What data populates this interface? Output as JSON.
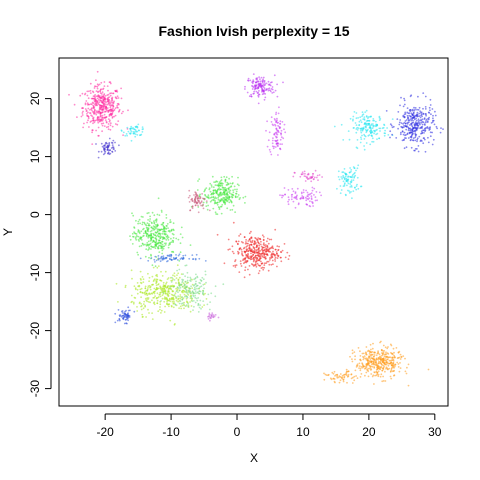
{
  "chart_data": {
    "type": "scatter",
    "title": "Fashion lvish perplexity = 15",
    "xlabel": "X",
    "ylabel": "Y",
    "xlim": [
      -27,
      32
    ],
    "ylim": [
      -33,
      27
    ],
    "x_ticks": [
      -20,
      -10,
      0,
      10,
      20,
      30
    ],
    "y_ticks": [
      -30,
      -20,
      -10,
      0,
      10,
      20
    ],
    "grid": false,
    "clusters": [
      {
        "color": "#ff2aa0",
        "center": [
          -20.5,
          18.5
        ],
        "spread": [
          2.6,
          3.4
        ],
        "count": 420
      },
      {
        "color": "#3a2acc",
        "center": [
          -19.5,
          11.5
        ],
        "spread": [
          1.2,
          1.2
        ],
        "count": 60
      },
      {
        "color": "#22e6f0",
        "center": [
          -15.5,
          14.5
        ],
        "spread": [
          1.6,
          0.8
        ],
        "count": 50
      },
      {
        "color": "#b82cf0",
        "center": [
          3.5,
          22.0
        ],
        "spread": [
          2.0,
          1.8
        ],
        "count": 140
      },
      {
        "color": "#c83cf0",
        "center": [
          6.0,
          14.0
        ],
        "spread": [
          1.0,
          3.5
        ],
        "count": 90
      },
      {
        "color": "#c83cf0",
        "center": [
          9.5,
          3.0
        ],
        "spread": [
          2.5,
          1.5
        ],
        "count": 80
      },
      {
        "color": "#e23cc8",
        "center": [
          11.0,
          6.5
        ],
        "spread": [
          2.0,
          0.9
        ],
        "count": 40
      },
      {
        "color": "#22e6f0",
        "center": [
          17.0,
          6.0
        ],
        "spread": [
          1.5,
          2.2
        ],
        "count": 90
      },
      {
        "color": "#22e6f0",
        "center": [
          20.0,
          15.0
        ],
        "spread": [
          2.5,
          2.2
        ],
        "count": 170
      },
      {
        "color": "#2a2ae0",
        "center": [
          27.0,
          15.5
        ],
        "spread": [
          2.6,
          3.4
        ],
        "count": 320
      },
      {
        "color": "#44e83c",
        "center": [
          -2.5,
          3.5
        ],
        "spread": [
          2.4,
          2.6
        ],
        "count": 260
      },
      {
        "color": "#c85a7a",
        "center": [
          -6.0,
          2.5
        ],
        "spread": [
          1.2,
          1.5
        ],
        "count": 70
      },
      {
        "color": "#ee2222",
        "center": [
          3.0,
          -6.5
        ],
        "spread": [
          3.2,
          2.6
        ],
        "count": 360
      },
      {
        "color": "#44e83c",
        "center": [
          -12.5,
          -3.5
        ],
        "spread": [
          3.0,
          3.2
        ],
        "count": 340
      },
      {
        "color": "#a8e81c",
        "center": [
          -11.0,
          -13.5
        ],
        "spread": [
          4.5,
          3.2
        ],
        "count": 380
      },
      {
        "color": "#7adc8a",
        "center": [
          -7.0,
          -13.0
        ],
        "spread": [
          3.0,
          3.0
        ],
        "count": 160
      },
      {
        "color": "#2a66dc",
        "center": [
          -10.0,
          -7.5
        ],
        "spread": [
          3.0,
          0.5
        ],
        "count": 70
      },
      {
        "color": "#2a4adc",
        "center": [
          -17.0,
          -17.5
        ],
        "spread": [
          1.1,
          1.0
        ],
        "count": 60
      },
      {
        "color": "#c45ad8",
        "center": [
          -4.0,
          -17.5
        ],
        "spread": [
          0.8,
          0.6
        ],
        "count": 20
      },
      {
        "color": "#ff9a1a",
        "center": [
          21.5,
          -25.5
        ],
        "spread": [
          3.2,
          2.4
        ],
        "count": 380
      },
      {
        "color": "#ff9a1a",
        "center": [
          16.0,
          -28.0
        ],
        "spread": [
          2.4,
          0.8
        ],
        "count": 60
      }
    ]
  }
}
